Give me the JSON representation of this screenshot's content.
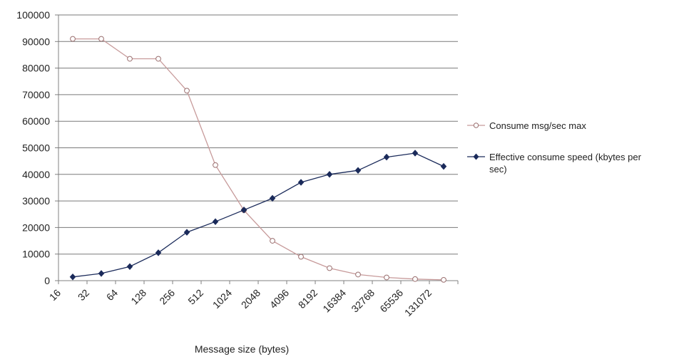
{
  "chart_data": {
    "type": "line",
    "title": "",
    "xlabel": "Message size (bytes)",
    "ylabel": "",
    "categories": [
      "16",
      "32",
      "64",
      "128",
      "256",
      "512",
      "1024",
      "2048",
      "4096",
      "8192",
      "16384",
      "32768",
      "65536",
      "131072"
    ],
    "x": [
      16,
      32,
      64,
      128,
      256,
      512,
      1024,
      2048,
      4096,
      8192,
      16384,
      32768,
      65536,
      131072
    ],
    "x_scale": "log2",
    "ylim": [
      0,
      100000
    ],
    "yticks": [
      "0",
      "10000",
      "20000",
      "30000",
      "40000",
      "50000",
      "60000",
      "70000",
      "80000",
      "90000",
      "100000"
    ],
    "grid": "horizontal",
    "legend_position": "right",
    "series": [
      {
        "name": "Consume msg/sec max",
        "marker": "open-circle",
        "color": "#c79a9a",
        "values": [
          91000,
          91000,
          83500,
          83500,
          71500,
          43500,
          26500,
          15000,
          9000,
          4700,
          2300,
          1200,
          600,
          300
        ]
      },
      {
        "name": "Effective consume speed (kbytes per sec)",
        "name_lines": [
          "Effective consume speed (kbytes per",
          "sec)"
        ],
        "marker": "filled-diamond",
        "color": "#1a2a5a",
        "values": [
          1400,
          2700,
          5300,
          10500,
          18200,
          22200,
          26600,
          31000,
          37000,
          40000,
          41500,
          46500,
          48000,
          43000
        ]
      }
    ]
  }
}
